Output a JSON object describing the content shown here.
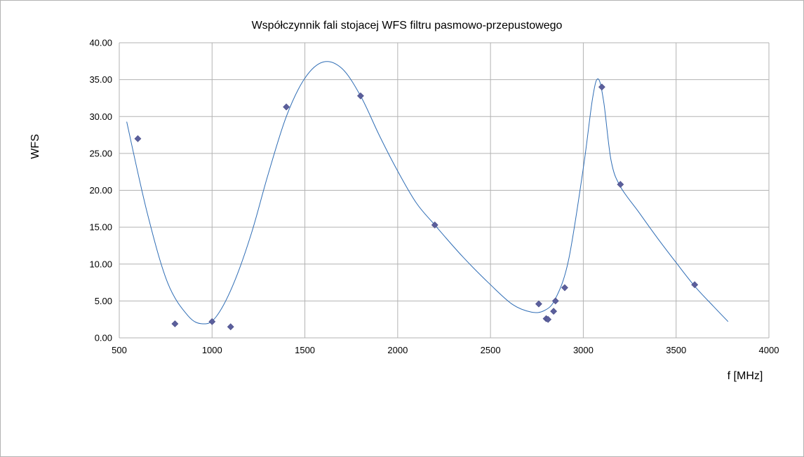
{
  "chart_data": {
    "type": "scatter",
    "title": "Współczynnik fali stojacej WFS filtru pasmowo-przepustowego",
    "xlabel": "f [MHz]",
    "ylabel": "WFS",
    "xlim": [
      500,
      4000
    ],
    "ylim": [
      0,
      40
    ],
    "xticks": [
      500,
      1000,
      1500,
      2000,
      2500,
      3000,
      3500,
      4000
    ],
    "yticks": [
      0,
      5,
      10,
      15,
      20,
      25,
      30,
      35,
      40
    ],
    "ytick_format": "0.00",
    "grid": true,
    "legend": "none",
    "series": [
      {
        "marker": "diamond",
        "color": "#5b5f9c",
        "points": [
          {
            "x": 600,
            "y": 27.0
          },
          {
            "x": 800,
            "y": 1.9
          },
          {
            "x": 1000,
            "y": 2.2
          },
          {
            "x": 1100,
            "y": 1.5
          },
          {
            "x": 1400,
            "y": 31.3
          },
          {
            "x": 1800,
            "y": 32.8
          },
          {
            "x": 2200,
            "y": 15.3
          },
          {
            "x": 2760,
            "y": 4.6
          },
          {
            "x": 2800,
            "y": 2.6
          },
          {
            "x": 2810,
            "y": 2.5
          },
          {
            "x": 2840,
            "y": 3.6
          },
          {
            "x": 2850,
            "y": 5.0
          },
          {
            "x": 2900,
            "y": 6.8
          },
          {
            "x": 3100,
            "y": 34.0
          },
          {
            "x": 3200,
            "y": 20.8
          },
          {
            "x": 3600,
            "y": 7.2
          }
        ]
      }
    ],
    "trendline": {
      "type": "smooth",
      "color": "#2f6db5",
      "points": [
        {
          "x": 540,
          "y": 29.3
        },
        {
          "x": 650,
          "y": 17.0
        },
        {
          "x": 760,
          "y": 7.5
        },
        {
          "x": 870,
          "y": 3.0
        },
        {
          "x": 950,
          "y": 1.9
        },
        {
          "x": 1020,
          "y": 2.8
        },
        {
          "x": 1110,
          "y": 7.0
        },
        {
          "x": 1210,
          "y": 14.0
        },
        {
          "x": 1300,
          "y": 22.0
        },
        {
          "x": 1400,
          "y": 30.0
        },
        {
          "x": 1500,
          "y": 35.2
        },
        {
          "x": 1600,
          "y": 37.4
        },
        {
          "x": 1700,
          "y": 36.5
        },
        {
          "x": 1800,
          "y": 32.8
        },
        {
          "x": 1900,
          "y": 27.5
        },
        {
          "x": 2000,
          "y": 22.6
        },
        {
          "x": 2100,
          "y": 18.3
        },
        {
          "x": 2200,
          "y": 15.3
        },
        {
          "x": 2350,
          "y": 11.0
        },
        {
          "x": 2500,
          "y": 7.2
        },
        {
          "x": 2620,
          "y": 4.5
        },
        {
          "x": 2720,
          "y": 3.5
        },
        {
          "x": 2790,
          "y": 3.7
        },
        {
          "x": 2850,
          "y": 5.3
        },
        {
          "x": 2920,
          "y": 10.5
        },
        {
          "x": 3000,
          "y": 23.0
        },
        {
          "x": 3050,
          "y": 32.5
        },
        {
          "x": 3080,
          "y": 35.1
        },
        {
          "x": 3110,
          "y": 32.0
        },
        {
          "x": 3150,
          "y": 24.0
        },
        {
          "x": 3200,
          "y": 20.5
        },
        {
          "x": 3300,
          "y": 17.0
        },
        {
          "x": 3400,
          "y": 13.5
        },
        {
          "x": 3500,
          "y": 10.2
        },
        {
          "x": 3600,
          "y": 7.0
        },
        {
          "x": 3700,
          "y": 4.3
        },
        {
          "x": 3780,
          "y": 2.2
        }
      ]
    }
  }
}
